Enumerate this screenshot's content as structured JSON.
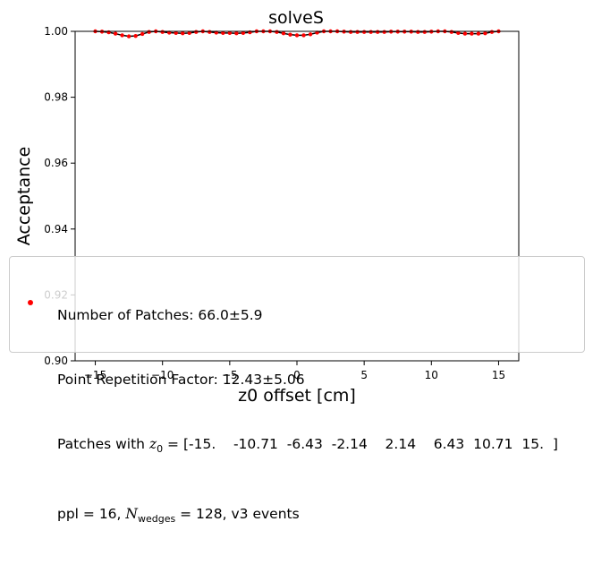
{
  "chart_data": {
    "type": "line",
    "title": "solveS",
    "xlabel": "z0 offset [cm]",
    "ylabel": "Acceptance",
    "xlim": [
      -16.5,
      16.5
    ],
    "ylim": [
      0.9,
      1.0
    ],
    "x_ticks": [
      -15,
      -10,
      -5,
      0,
      5,
      10,
      15
    ],
    "x_tick_labels": [
      "−15",
      "−10",
      "−5",
      "0",
      "5",
      "10",
      "15"
    ],
    "y_ticks": [
      0.9,
      0.92,
      0.94,
      0.96,
      0.98,
      1.0
    ],
    "y_tick_labels": [
      "0.90",
      "0.92",
      "0.94",
      "0.96",
      "0.98",
      "1.00"
    ],
    "grid": false,
    "legend_placement": "lower-center",
    "colors": {
      "points": "#ff0000",
      "line": "#000000",
      "legend_border": "#cccccc"
    },
    "series": [
      {
        "x": [
          -15.0,
          -14.5,
          -14.0,
          -13.5,
          -13.0,
          -12.5,
          -12.0,
          -11.5,
          -11.0,
          -10.5,
          -10.0,
          -9.5,
          -9.0,
          -8.5,
          -8.0,
          -7.5,
          -7.0,
          -6.5,
          -6.0,
          -5.5,
          -5.0,
          -4.5,
          -4.0,
          -3.5,
          -3.0,
          -2.5,
          -2.0,
          -1.5,
          -1.0,
          -0.5,
          0.0,
          0.5,
          1.0,
          1.5,
          2.0,
          2.5,
          3.0,
          3.5,
          4.0,
          4.5,
          5.0,
          5.5,
          6.0,
          6.5,
          7.0,
          7.5,
          8.0,
          8.5,
          9.0,
          9.5,
          10.0,
          10.5,
          11.0,
          11.5,
          12.0,
          12.5,
          13.0,
          13.5,
          14.0,
          14.5,
          15.0
        ],
        "y": [
          1.0,
          0.9999,
          0.9997,
          0.9993,
          0.9988,
          0.9985,
          0.9986,
          0.9992,
          0.9998,
          1.0,
          0.9998,
          0.9996,
          0.9995,
          0.9994,
          0.9995,
          0.9998,
          1.0,
          0.9998,
          0.9996,
          0.9995,
          0.9995,
          0.9994,
          0.9995,
          0.9997,
          1.0,
          1.0,
          1.0,
          0.9998,
          0.9994,
          0.999,
          0.9988,
          0.9988,
          0.9991,
          0.9996,
          1.0,
          1.0,
          1.0,
          0.9999,
          0.9998,
          0.9998,
          0.9998,
          0.9998,
          0.9998,
          0.9998,
          0.9999,
          0.9999,
          0.9999,
          0.9999,
          0.9998,
          0.9998,
          0.9999,
          1.0,
          1.0,
          0.9998,
          0.9995,
          0.9993,
          0.9993,
          0.9993,
          0.9994,
          0.9998,
          1.0
        ]
      }
    ],
    "legend": {
      "line1": "Number of Patches: 66.0±5.9",
      "line2": "Point Repetition Factor: 12.43±5.06",
      "line3_prefix": "Patches with ",
      "line3_var": "z",
      "line3_sub": "0",
      "line3_values": " = [-15.    -10.71  -6.43  -2.14    2.14    6.43  10.71  15.  ]",
      "line4_prefix": "ppl = 16, ",
      "line4_var": "N",
      "line4_sub": "wedges",
      "line4_suffix": " = 128, v3 events"
    }
  }
}
